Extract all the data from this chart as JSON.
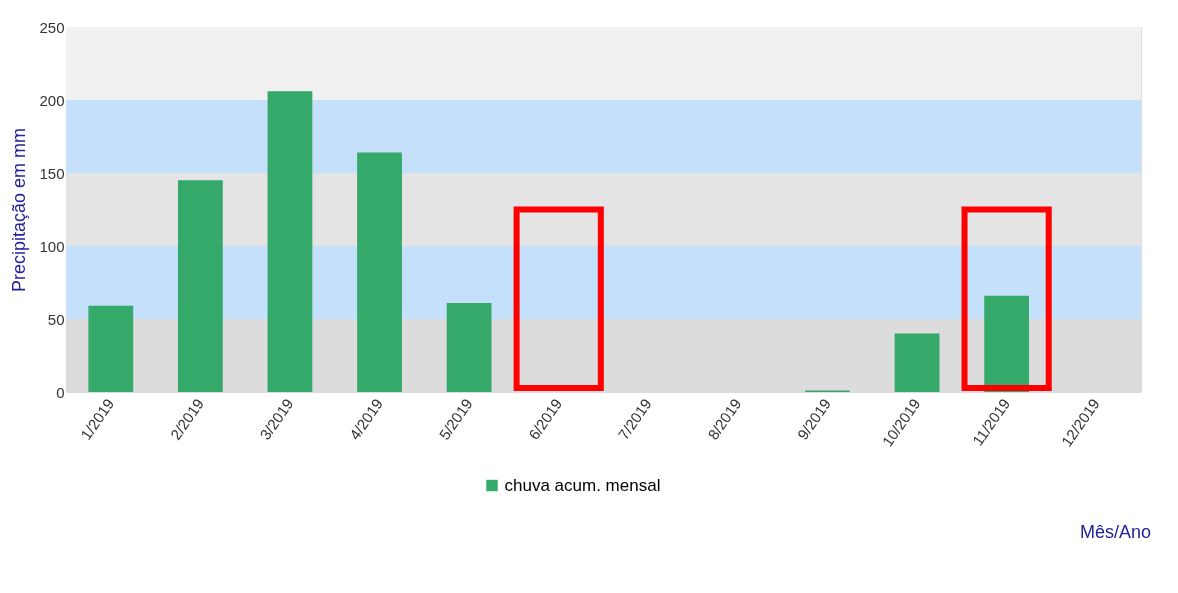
{
  "chart_data": {
    "type": "bar",
    "ylabel": "Precipitação em mm",
    "xlabel": "Mês/Ano",
    "categories": [
      "1/2019",
      "2/2019",
      "3/2019",
      "4/2019",
      "5/2019",
      "6/2019",
      "7/2019",
      "8/2019",
      "9/2019",
      "10/2019",
      "11/2019",
      "12/2019"
    ],
    "series": [
      {
        "name": "chuva acum. mensal",
        "color": "#34a96a",
        "values": [
          59,
          145,
          206,
          164,
          61,
          0,
          0,
          0,
          1,
          40,
          66,
          0
        ]
      }
    ],
    "ylim": [
      0,
      250
    ],
    "yticks": [
      0,
      50,
      100,
      150,
      200,
      250
    ],
    "bands": [
      {
        "axis": "y",
        "from": 0,
        "to": 50,
        "color": "#dcdcdc"
      },
      {
        "axis": "y",
        "from": 50,
        "to": 100,
        "color": "#c5e0fa"
      },
      {
        "axis": "y",
        "from": 100,
        "to": 150,
        "color": "#e4e4e4"
      },
      {
        "axis": "y",
        "from": 150,
        "to": 200,
        "color": "#c5e0fa"
      },
      {
        "axis": "y",
        "from": 200,
        "to": 250,
        "color": "#f1f1f1"
      }
    ],
    "legend": "bottom"
  }
}
